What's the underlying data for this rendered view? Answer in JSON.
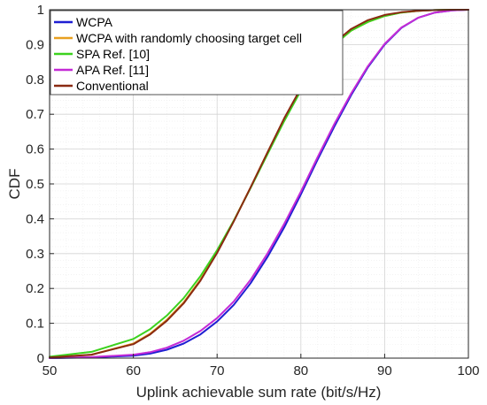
{
  "chart_data": {
    "type": "line",
    "xlabel": "Uplink achievable sum rate (bit/s/Hz)",
    "ylabel": "CDF",
    "xlim": [
      50,
      100
    ],
    "ylim": [
      0,
      1
    ],
    "xticks": [
      50,
      60,
      70,
      80,
      90,
      100
    ],
    "yticks": [
      0,
      0.1,
      0.2,
      0.3,
      0.4,
      0.5,
      0.6,
      0.7,
      0.8,
      0.9,
      1
    ],
    "xtick_labels": [
      "50",
      "60",
      "70",
      "80",
      "90",
      "100"
    ],
    "ytick_labels": [
      "0",
      "0.1",
      "0.2",
      "0.3",
      "0.4",
      "0.5",
      "0.6",
      "0.7",
      "0.8",
      "0.9",
      "1"
    ],
    "grid": true,
    "minor_grid": true,
    "legend_position": "top-left",
    "series": [
      {
        "name": "WCPA",
        "color": "#1f1fd2",
        "x": [
          50,
          55,
          60,
          62,
          64,
          66,
          68,
          70,
          72,
          74,
          76,
          78,
          80,
          82,
          84,
          86,
          88,
          90,
          92,
          94,
          96,
          98,
          100
        ],
        "y": [
          0,
          0.002,
          0.007,
          0.013,
          0.024,
          0.042,
          0.068,
          0.105,
          0.153,
          0.215,
          0.29,
          0.375,
          0.47,
          0.57,
          0.665,
          0.755,
          0.835,
          0.9,
          0.948,
          0.977,
          0.992,
          0.998,
          1
        ]
      },
      {
        "name": "WCPA with randomly choosing target cell",
        "color": "#e8a020",
        "x": [
          50,
          55,
          60,
          62,
          64,
          66,
          68,
          70,
          72,
          74,
          76,
          78,
          80,
          82,
          84,
          86,
          88,
          90,
          92,
          94,
          96,
          98,
          100
        ],
        "y": [
          0.002,
          0.01,
          0.042,
          0.07,
          0.11,
          0.16,
          0.225,
          0.305,
          0.395,
          0.49,
          0.59,
          0.685,
          0.77,
          0.845,
          0.9,
          0.94,
          0.965,
          0.982,
          0.992,
          0.997,
          0.999,
          1,
          1
        ]
      },
      {
        "name": "SPA Ref. [10]",
        "color": "#3cd21e",
        "x": [
          50,
          55,
          60,
          62,
          64,
          66,
          68,
          70,
          72,
          74,
          76,
          78,
          80,
          82,
          84,
          86,
          88,
          90,
          92,
          94,
          96,
          98,
          100
        ],
        "y": [
          0.004,
          0.018,
          0.055,
          0.083,
          0.122,
          0.172,
          0.235,
          0.31,
          0.395,
          0.488,
          0.585,
          0.68,
          0.768,
          0.843,
          0.9,
          0.94,
          0.965,
          0.982,
          0.992,
          0.997,
          0.999,
          1,
          1
        ]
      },
      {
        "name": "APA Ref. [11]",
        "color": "#c42ad6",
        "x": [
          50,
          55,
          60,
          62,
          64,
          66,
          68,
          70,
          72,
          74,
          76,
          78,
          80,
          82,
          84,
          86,
          88,
          90,
          92,
          94,
          96,
          98,
          100
        ],
        "y": [
          0,
          0.003,
          0.01,
          0.017,
          0.03,
          0.05,
          0.078,
          0.115,
          0.163,
          0.225,
          0.3,
          0.385,
          0.478,
          0.577,
          0.672,
          0.76,
          0.838,
          0.902,
          0.949,
          0.977,
          0.992,
          0.998,
          1
        ]
      },
      {
        "name": "Conventional",
        "color": "#8a2a12",
        "x": [
          50,
          55,
          60,
          62,
          64,
          66,
          68,
          70,
          72,
          74,
          76,
          78,
          80,
          82,
          84,
          86,
          88,
          90,
          92,
          94,
          96,
          98,
          100
        ],
        "y": [
          0.002,
          0.01,
          0.04,
          0.068,
          0.107,
          0.157,
          0.222,
          0.302,
          0.393,
          0.49,
          0.59,
          0.688,
          0.775,
          0.85,
          0.905,
          0.945,
          0.97,
          0.985,
          0.993,
          0.997,
          0.999,
          1,
          1
        ]
      }
    ]
  }
}
